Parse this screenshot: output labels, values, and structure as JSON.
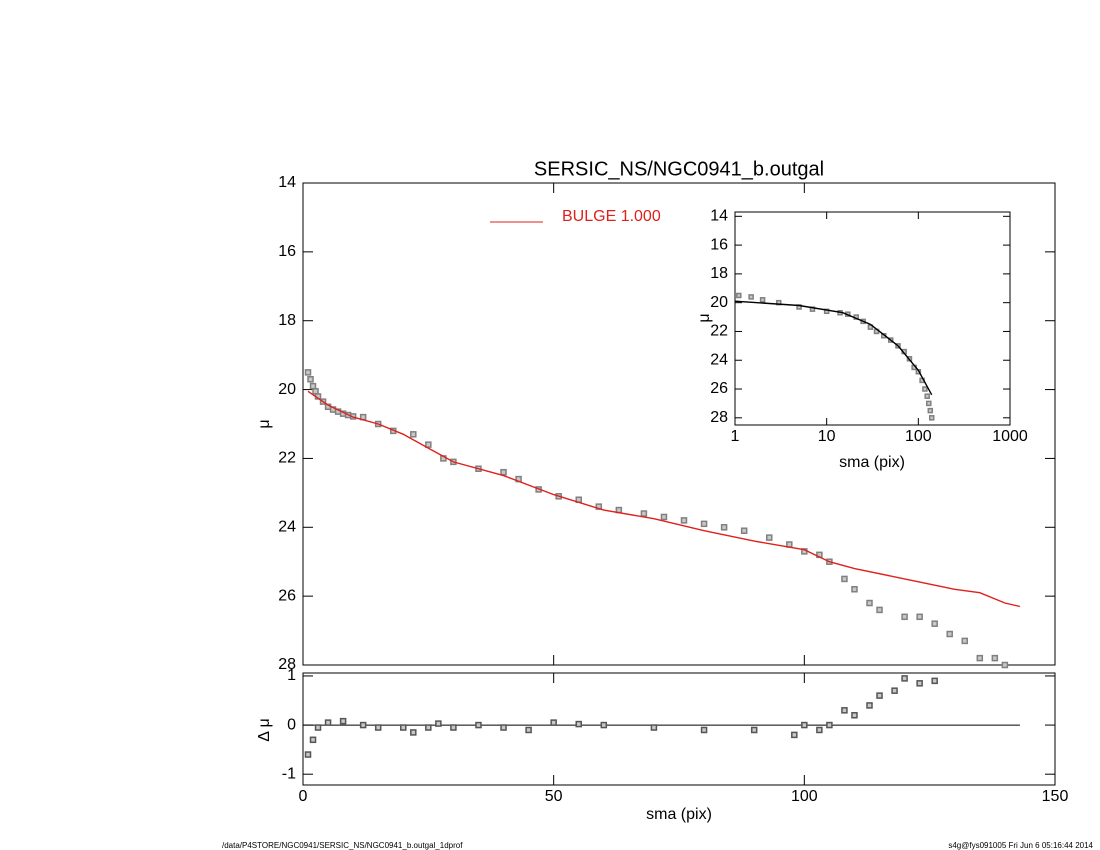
{
  "chart_data": [
    {
      "type": "scatter",
      "title": "SERSIC_NS/NGC0941_b.outgal",
      "ylabel": "μ",
      "xlim": [
        0,
        150
      ],
      "xticks": [
        0,
        50,
        100,
        150
      ],
      "xtick_labels": false,
      "ylim": [
        28,
        14
      ],
      "yticks": [
        14,
        16,
        18,
        20,
        22,
        24,
        26,
        28
      ],
      "legend": "top-center",
      "series": [
        {
          "style": "markers",
          "color": "#808080",
          "x": [
            1,
            1.5,
            2,
            2.5,
            3,
            4,
            5,
            6,
            7,
            8,
            9,
            10,
            12,
            15,
            18,
            22,
            25,
            28,
            30,
            35,
            40,
            43,
            47,
            51,
            55,
            59,
            63,
            68,
            72,
            76,
            80,
            84,
            88,
            93,
            97,
            100,
            103,
            105,
            108,
            110,
            113,
            115,
            120,
            123,
            126,
            129,
            132,
            135,
            138,
            140
          ],
          "values": [
            19.5,
            19.7,
            19.9,
            20.05,
            20.2,
            20.35,
            20.5,
            20.58,
            20.64,
            20.7,
            20.74,
            20.78,
            20.8,
            21.0,
            21.2,
            21.3,
            21.6,
            22.0,
            22.1,
            22.3,
            22.4,
            22.6,
            22.9,
            23.1,
            23.2,
            23.4,
            23.5,
            23.6,
            23.7,
            23.8,
            23.9,
            24.0,
            24.1,
            24.3,
            24.5,
            24.7,
            24.8,
            25.0,
            25.5,
            25.8,
            26.2,
            26.4,
            26.6,
            26.6,
            26.8,
            27.1,
            27.3,
            27.8,
            27.8,
            28.0
          ]
        },
        {
          "style": "line",
          "name": "BULGE  1.000",
          "color": "#e0201c",
          "x": [
            1,
            5,
            10,
            15,
            20,
            25,
            30,
            40,
            50,
            60,
            70,
            80,
            90,
            100,
            105,
            110,
            120,
            130,
            135,
            140,
            143
          ],
          "values": [
            20.05,
            20.45,
            20.8,
            21.0,
            21.3,
            21.7,
            22.1,
            22.5,
            23.05,
            23.5,
            23.75,
            24.1,
            24.4,
            24.65,
            25.0,
            25.2,
            25.5,
            25.8,
            25.9,
            26.2,
            26.3
          ]
        }
      ]
    },
    {
      "type": "scatter",
      "xlabel": "sma (pix)",
      "ylabel": "Δ μ",
      "xlim": [
        0,
        150
      ],
      "xticks": [
        0,
        50,
        100,
        150
      ],
      "xtick_labels": true,
      "ylim": [
        -1.22,
        1.06
      ],
      "yticks": [
        -1,
        0,
        1
      ],
      "reference_y": 0,
      "series": [
        {
          "style": "markers",
          "color": "#555555",
          "x": [
            1,
            2,
            3,
            5,
            8,
            12,
            15,
            20,
            22,
            25,
            27,
            30,
            35,
            40,
            45,
            50,
            55,
            60,
            70,
            80,
            90,
            98,
            100,
            103,
            105,
            108,
            110,
            113,
            115,
            118,
            120,
            123,
            126
          ],
          "values": [
            -0.6,
            -0.3,
            -0.05,
            0.05,
            0.08,
            0.0,
            -0.05,
            -0.05,
            -0.15,
            -0.05,
            0.03,
            -0.05,
            0.0,
            -0.05,
            -0.1,
            0.05,
            0.02,
            0.0,
            -0.05,
            -0.1,
            -0.1,
            -0.2,
            0.0,
            -0.1,
            0.0,
            0.3,
            0.2,
            0.4,
            0.6,
            0.7,
            0.95,
            0.85,
            0.9
          ]
        }
      ]
    },
    {
      "type": "scatter",
      "xlabel": "sma (pix)",
      "ylabel": "μ",
      "xscale": "log",
      "xlim": [
        1,
        1000
      ],
      "xticks": [
        1,
        10,
        100,
        1000
      ],
      "xtick_labels": true,
      "ylim": [
        28.5,
        13.7
      ],
      "yticks": [
        14,
        16,
        18,
        20,
        22,
        24,
        26,
        28
      ],
      "series": [
        {
          "style": "markers",
          "color": "#808080",
          "x": [
            1.1,
            1.5,
            2,
            3,
            5,
            7,
            10,
            14,
            17,
            21,
            25,
            30,
            35,
            42,
            50,
            60,
            70,
            80,
            90,
            100,
            110,
            118,
            125,
            130,
            135,
            140
          ],
          "values": [
            19.5,
            19.6,
            19.8,
            20.0,
            20.3,
            20.45,
            20.6,
            20.7,
            20.8,
            21.0,
            21.3,
            21.7,
            22.0,
            22.3,
            22.6,
            23.0,
            23.4,
            23.9,
            24.5,
            24.8,
            25.4,
            26.0,
            26.5,
            27.0,
            27.5,
            28.0
          ]
        },
        {
          "style": "line",
          "color": "#000000",
          "x": [
            1,
            5,
            15,
            30,
            60,
            100,
            140
          ],
          "values": [
            19.9,
            20.2,
            20.7,
            21.5,
            23.0,
            24.7,
            26.4
          ]
        }
      ]
    }
  ],
  "footer": {
    "left": "/data/P4STORE/NGC0941/SERSIC_NS/NGC0941_b.outgal_1dprof",
    "right": "s4g@fys091005  Fri Jun  6 05:16:44 2014"
  }
}
